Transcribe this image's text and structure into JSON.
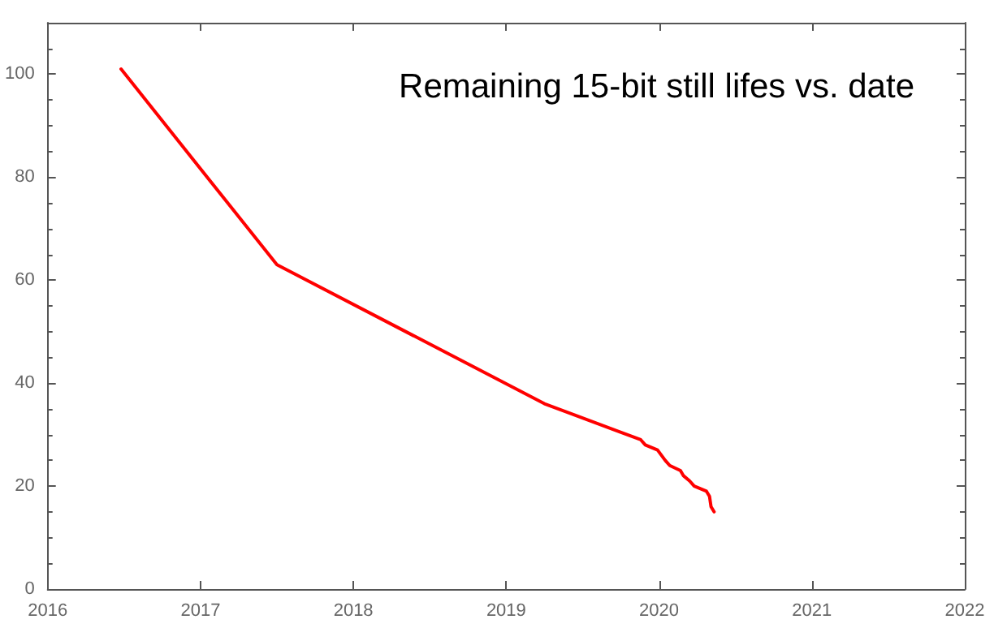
{
  "chart_data": {
    "type": "line",
    "title": "Remaining 15-bit still lifes vs. date",
    "series": [
      {
        "color": "#ff0000",
        "x": [
          2016.48,
          2017.5,
          2019.25,
          2019.88,
          2019.91,
          2019.99,
          2020.04,
          2020.07,
          2020.14,
          2020.16,
          2020.2,
          2020.23,
          2020.31,
          2020.33,
          2020.34,
          2020.36
        ],
        "values": [
          101,
          63,
          36,
          29,
          28,
          27,
          25,
          24,
          23,
          22,
          21,
          20,
          19,
          18,
          16,
          15
        ]
      }
    ],
    "xlim": [
      2016,
      2022
    ],
    "xticks": [
      2016,
      2017,
      2018,
      2019,
      2020,
      2021,
      2022
    ],
    "ylim": [
      0,
      110
    ],
    "yticks": [
      0,
      20,
      40,
      60,
      80,
      100
    ],
    "grid": false,
    "marker": "none",
    "line_style": "solid"
  }
}
